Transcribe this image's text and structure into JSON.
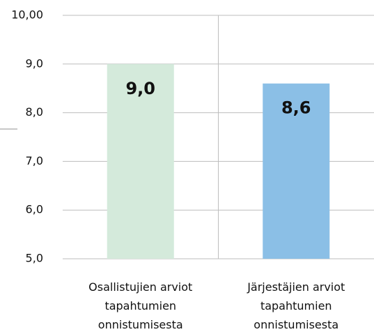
{
  "chart_data": {
    "type": "bar",
    "categories": [
      "Osallistujien arviot tapahtumien onnistumisesta",
      "Järjestäjien arviot tapahtumien onnistumisesta"
    ],
    "values": [
      9.0,
      8.6
    ],
    "value_labels": [
      "9,0",
      "8,6"
    ],
    "colors": [
      "#d4eadb",
      "#8bbfe6"
    ],
    "ylim": [
      5,
      10
    ],
    "yticks": [
      {
        "value": 5,
        "label": "5,0"
      },
      {
        "value": 6,
        "label": "6,0"
      },
      {
        "value": 7,
        "label": "7,0"
      },
      {
        "value": 8,
        "label": "8,0"
      },
      {
        "value": 9,
        "label": "9,0"
      },
      {
        "value": 10,
        "label": "10,00"
      }
    ],
    "grid": true
  }
}
